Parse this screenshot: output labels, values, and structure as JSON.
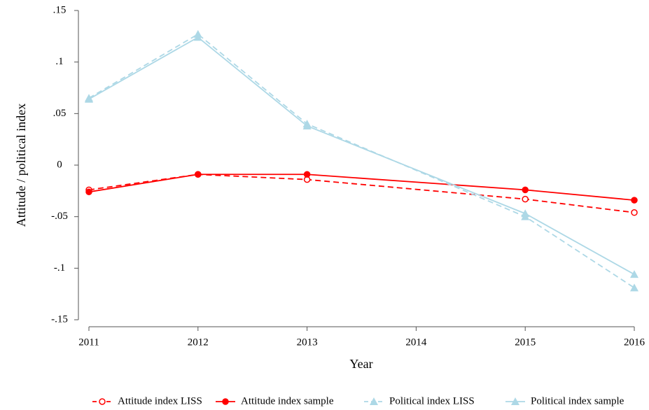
{
  "chart_data": {
    "type": "line",
    "x_label": "Year",
    "y_label": "Attitude / political index",
    "x": [
      2011,
      2012,
      2013,
      2015,
      2016
    ],
    "xlim": [
      2011,
      2016
    ],
    "xticks": [
      2011,
      2012,
      2013,
      2014,
      2015,
      2016
    ],
    "ylim": [
      -0.15,
      0.15
    ],
    "yticks": [
      {
        "value": -0.15,
        "label": "-.15"
      },
      {
        "value": -0.1,
        "label": "-.1"
      },
      {
        "value": -0.05,
        "label": "-.05"
      },
      0,
      {
        "value": 0.05,
        "label": ".05"
      },
      {
        "value": 0.1,
        "label": ".1"
      },
      {
        "value": 0.15,
        "label": ".15"
      }
    ],
    "grid": false,
    "legend": "bottom",
    "series": [
      {
        "name": "Attitude index LISS",
        "color": "#ff0000",
        "dashed": true,
        "marker": "hollow-circle",
        "values": [
          -0.024,
          -0.009,
          -0.014,
          -0.033,
          -0.046
        ]
      },
      {
        "name": "Attitude index sample",
        "color": "#ff0000",
        "dashed": false,
        "marker": "circle",
        "values": [
          -0.026,
          -0.009,
          -0.009,
          -0.024,
          -0.034
        ]
      },
      {
        "name": "Political index LISS",
        "color": "#add8e6",
        "dashed": true,
        "marker": "triangle",
        "values": [
          0.065,
          0.127,
          0.04,
          -0.05,
          -0.119
        ]
      },
      {
        "name": "Political index sample",
        "color": "#add8e6",
        "dashed": false,
        "marker": "triangle",
        "values": [
          0.064,
          0.124,
          0.038,
          -0.047,
          -0.106
        ]
      }
    ]
  }
}
